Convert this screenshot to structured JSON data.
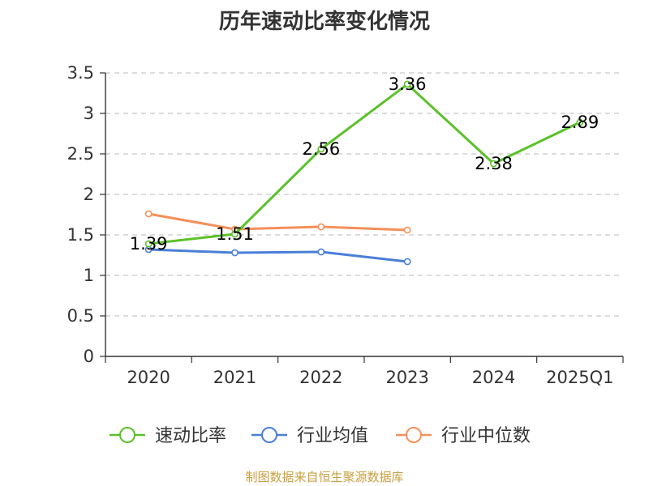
{
  "title": "历年速动比率变化情况",
  "source_note": "制图数据来自恒生聚源数据库",
  "chart_data": {
    "type": "line",
    "title": "历年速动比率变化情况",
    "categories": [
      "2020",
      "2021",
      "2022",
      "2023",
      "2024",
      "2025Q1"
    ],
    "ylim": [
      0,
      3.5
    ],
    "yticks": [
      "0",
      "0.5",
      "1",
      "1.5",
      "2",
      "2.5",
      "3",
      "3.5"
    ],
    "grid": true,
    "legend_position": "bottom",
    "series": [
      {
        "name": "速动比率",
        "color": "#5cc12a",
        "values": [
          1.39,
          1.51,
          2.56,
          3.36,
          2.38,
          2.89
        ],
        "labels": [
          "1.39",
          "1.51",
          "2.56",
          "3.36",
          "2.38",
          "2.89"
        ]
      },
      {
        "name": "行业均值",
        "color": "#4a7fd8",
        "values": [
          1.32,
          1.28,
          1.29,
          1.17,
          null,
          null
        ]
      },
      {
        "name": "行业中位数",
        "color": "#f58f5a",
        "values": [
          1.76,
          1.57,
          1.6,
          1.56,
          null,
          null
        ]
      }
    ]
  }
}
